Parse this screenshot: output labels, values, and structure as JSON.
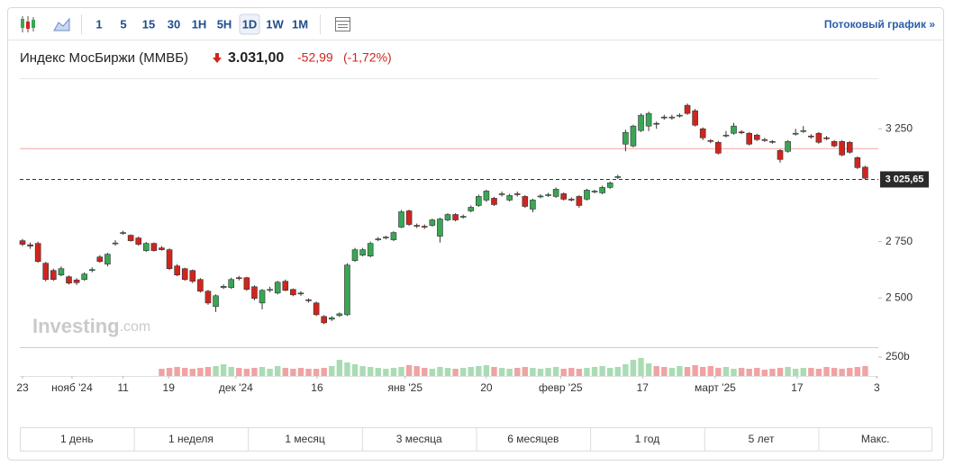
{
  "toolbar": {
    "intervals": [
      "1",
      "5",
      "15",
      "30",
      "1H",
      "5H",
      "1D",
      "1W",
      "1M"
    ],
    "selected": "1D",
    "stream_link": "Потоковый график »"
  },
  "header": {
    "name": "Индекс МосБиржи (ММВБ)",
    "price": "3.031,00",
    "change": "-52,99",
    "change_pct": "(-1,72%)"
  },
  "watermark": {
    "brand": "Investing",
    "suffix": ".com"
  },
  "chart_data": {
    "type": "candlestick",
    "up_color": "#3aa655",
    "down_color": "#d0251f",
    "volume_up_color": "#a9dcb4",
    "volume_down_color": "#f0a3a3",
    "open": [
      2754,
      2736,
      2742,
      2654,
      2622,
      2602,
      2594,
      2580,
      2582,
      2622,
      2682,
      2650,
      2740,
      2786,
      2778,
      2766,
      2710,
      2742,
      2722,
      2714,
      2642,
      2630,
      2622,
      2582,
      2530,
      2462,
      2546,
      2546,
      2590,
      2590,
      2550,
      2478,
      2534,
      2522,
      2574,
      2538,
      2522,
      2492,
      2478,
      2418,
      2406,
      2422,
      2426,
      2666,
      2690,
      2686,
      2758,
      2766,
      2758,
      2814,
      2886,
      2822,
      2818,
      2822,
      2774,
      2846,
      2870,
      2858,
      2886,
      2910,
      2934,
      2942,
      2958,
      2934,
      2962,
      2950,
      2894,
      2948,
      2954,
      2950,
      2962,
      2938,
      2950,
      2938,
      2970,
      2966,
      2990,
      3034,
      3182,
      3174,
      3242,
      3262,
      3274,
      3302,
      3298,
      3308,
      3354,
      3330,
      3250,
      3198,
      3190,
      3218,
      3230,
      3236,
      3230,
      3222,
      3202,
      3194,
      3154,
      3150,
      3226,
      3238,
      3218,
      3230,
      3210,
      3194,
      3194,
      3190,
      3122,
      3080
    ],
    "high": [
      2762,
      2746,
      2750,
      2660,
      2630,
      2640,
      2600,
      2588,
      2614,
      2636,
      2690,
      2700,
      2756,
      2798,
      2782,
      2772,
      2748,
      2746,
      2730,
      2720,
      2650,
      2634,
      2626,
      2588,
      2536,
      2516,
      2560,
      2590,
      2598,
      2594,
      2556,
      2540,
      2550,
      2576,
      2582,
      2542,
      2530,
      2498,
      2484,
      2424,
      2420,
      2436,
      2654,
      2722,
      2722,
      2750,
      2770,
      2776,
      2796,
      2890,
      2892,
      2830,
      2826,
      2852,
      2856,
      2876,
      2876,
      2870,
      2910,
      2958,
      2980,
      2948,
      2972,
      2962,
      2972,
      2956,
      2940,
      2960,
      2966,
      2990,
      2968,
      2946,
      2956,
      2984,
      2980,
      2998,
      3016,
      3046,
      3246,
      3268,
      3318,
      3326,
      3282,
      3312,
      3312,
      3318,
      3362,
      3338,
      3256,
      3204,
      3196,
      3240,
      3276,
      3244,
      3236,
      3228,
      3210,
      3200,
      3160,
      3200,
      3250,
      3262,
      3226,
      3236,
      3218,
      3200,
      3200,
      3196,
      3128,
      3086
    ],
    "low": [
      2730,
      2718,
      2656,
      2574,
      2576,
      2596,
      2560,
      2558,
      2576,
      2614,
      2656,
      2640,
      2732,
      2780,
      2750,
      2732,
      2704,
      2706,
      2710,
      2624,
      2596,
      2576,
      2566,
      2524,
      2470,
      2438,
      2540,
      2540,
      2578,
      2532,
      2490,
      2450,
      2526,
      2516,
      2530,
      2508,
      2510,
      2480,
      2420,
      2384,
      2398,
      2416,
      2420,
      2660,
      2684,
      2680,
      2752,
      2760,
      2752,
      2810,
      2820,
      2810,
      2806,
      2816,
      2746,
      2840,
      2840,
      2852,
      2880,
      2904,
      2926,
      2908,
      2950,
      2928,
      2950,
      2900,
      2880,
      2942,
      2948,
      2944,
      2932,
      2928,
      2900,
      2932,
      2964,
      2960,
      2984,
      3028,
      3150,
      3168,
      3236,
      3240,
      3250,
      3290,
      3290,
      3300,
      3312,
      3260,
      3200,
      3186,
      3136,
      3212,
      3224,
      3226,
      3176,
      3196,
      3192,
      3184,
      3100,
      3144,
      3220,
      3232,
      3206,
      3184,
      3200,
      3168,
      3128,
      3140,
      3072,
      3024
    ],
    "close": [
      2738,
      2730,
      2662,
      2582,
      2582,
      2630,
      2566,
      2568,
      2606,
      2626,
      2662,
      2694,
      2744,
      2790,
      2754,
      2738,
      2742,
      2710,
      2714,
      2630,
      2602,
      2582,
      2574,
      2530,
      2478,
      2510,
      2552,
      2582,
      2586,
      2538,
      2498,
      2534,
      2538,
      2570,
      2534,
      2514,
      2518,
      2488,
      2426,
      2390,
      2412,
      2430,
      2646,
      2714,
      2714,
      2742,
      2762,
      2770,
      2790,
      2882,
      2826,
      2818,
      2814,
      2846,
      2850,
      2870,
      2846,
      2862,
      2902,
      2950,
      2974,
      2914,
      2962,
      2954,
      2958,
      2906,
      2934,
      2952,
      2958,
      2982,
      2938,
      2934,
      2910,
      2978,
      2974,
      2990,
      3010,
      3038,
      3234,
      3262,
      3310,
      3318,
      3270,
      3298,
      3302,
      3310,
      3318,
      3266,
      3210,
      3194,
      3142,
      3222,
      3262,
      3234,
      3182,
      3202,
      3198,
      3190,
      3114,
      3194,
      3230,
      3242,
      3214,
      3190,
      3206,
      3174,
      3134,
      3146,
      3078,
      3031
    ],
    "volume": {
      "values": [
        null,
        null,
        null,
        null,
        null,
        null,
        null,
        null,
        null,
        null,
        null,
        null,
        null,
        null,
        null,
        null,
        null,
        null,
        95,
        107,
        119,
        107,
        95,
        107,
        119,
        131,
        155,
        119,
        107,
        95,
        107,
        119,
        95,
        131,
        107,
        95,
        107,
        95,
        95,
        107,
        131,
        214,
        179,
        155,
        131,
        119,
        107,
        95,
        107,
        119,
        143,
        131,
        107,
        95,
        119,
        107,
        95,
        107,
        119,
        131,
        143,
        119,
        107,
        95,
        107,
        119,
        107,
        95,
        107,
        119,
        95,
        107,
        95,
        107,
        119,
        131,
        107,
        119,
        155,
        214,
        238,
        167,
        131,
        119,
        107,
        131,
        119,
        143,
        119,
        131,
        107,
        119,
        95,
        107,
        95,
        107,
        83,
        95,
        107,
        119,
        95,
        107,
        107,
        95,
        119,
        107,
        95,
        107,
        119,
        131
      ],
      "ylim": [
        0,
        381
      ],
      "yticks": [
        {
          "value": 250,
          "label": "250b"
        }
      ]
    },
    "xlim": [
      -0.35,
      110.7
    ],
    "xticks": [
      {
        "value": 0,
        "label": "23"
      },
      {
        "value": 6.4,
        "label": "нояб '24"
      },
      {
        "value": 13,
        "label": "11"
      },
      {
        "value": 18.9,
        "label": "19"
      },
      {
        "value": 27.6,
        "label": "дек '24"
      },
      {
        "value": 38.1,
        "label": "16"
      },
      {
        "value": 49.5,
        "label": "янв '25"
      },
      {
        "value": 60,
        "label": "20"
      },
      {
        "value": 69.6,
        "label": "февр '25"
      },
      {
        "value": 80.2,
        "label": "17"
      },
      {
        "value": 89.6,
        "label": "март '25"
      },
      {
        "value": 100.2,
        "label": "17"
      },
      {
        "value": 110.5,
        "label": "3"
      }
    ],
    "ylim": [
      2282,
      3470
    ],
    "yticks": [
      {
        "value": 2500,
        "label": "2 500"
      },
      {
        "value": 2750,
        "label": "2 750"
      },
      {
        "value": 3250,
        "label": "3 250"
      }
    ],
    "level": {
      "value": 3162,
      "color": "#f3a6a6"
    },
    "last_price": {
      "value": 3025.65,
      "label": "3 025,65"
    }
  },
  "range_buttons": [
    "1 день",
    "1 неделя",
    "1 месяц",
    "3 месяца",
    "6 месяцев",
    "1 год",
    "5 лет",
    "Макс."
  ]
}
